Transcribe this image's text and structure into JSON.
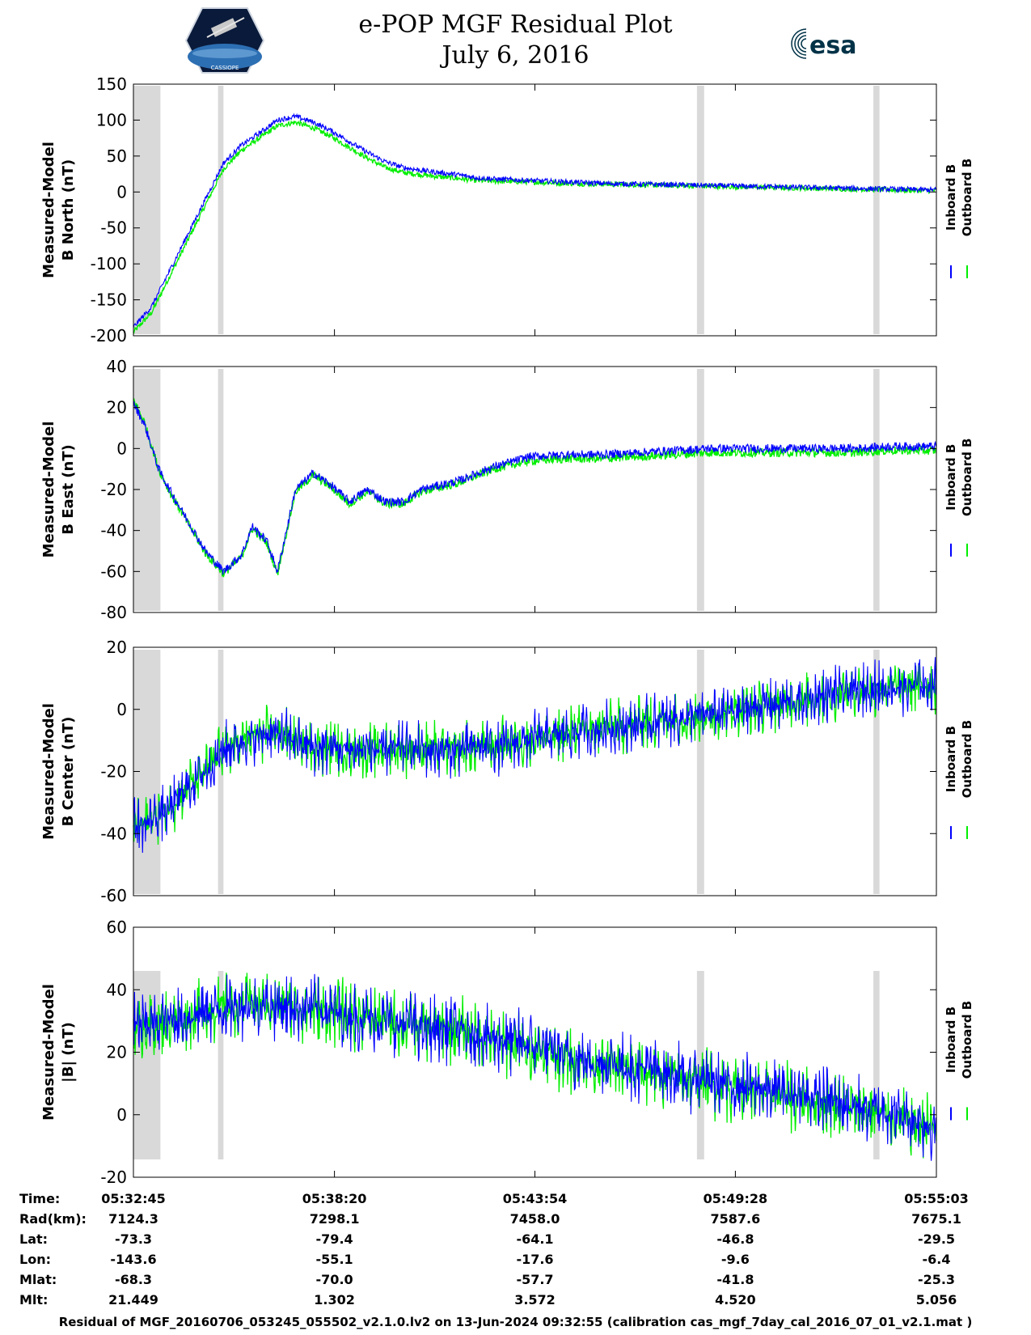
{
  "title": {
    "line1": "e-POP MGF Residual Plot",
    "line2": "July 6, 2016"
  },
  "logos": {
    "left": "cassiope-logo",
    "right": "esa-logo",
    "right_text": "esa",
    "left_text": "CASSIOPE"
  },
  "colors": {
    "inboard": "#0000ff",
    "outboard": "#00ee00",
    "gap": "#d9d9d9"
  },
  "chart_data": [
    {
      "type": "line",
      "ylabel_line1": "Measured-Model",
      "ylabel_line2": "B North (nT)",
      "ylim": [
        -200,
        150
      ],
      "yticks": [
        -200,
        -150,
        -100,
        -50,
        0,
        50,
        100,
        150
      ],
      "series": [
        {
          "name": "Inboard B",
          "x": [
            0,
            0.5,
            1,
            1.5,
            2,
            2.5,
            3,
            3.5,
            4,
            4.5,
            5,
            5.5,
            6,
            6.5,
            7,
            7.5,
            8,
            8.5,
            9,
            9.5,
            10,
            11,
            12,
            13,
            14,
            15,
            16,
            17,
            18,
            19,
            20,
            21,
            22
          ],
          "values": [
            -188,
            -160,
            -110,
            -60,
            -10,
            40,
            65,
            82,
            100,
            105,
            97,
            85,
            70,
            55,
            42,
            34,
            30,
            27,
            24,
            20,
            18,
            16,
            14,
            12,
            11,
            10,
            9,
            8,
            7,
            6,
            5,
            4,
            3
          ]
        },
        {
          "name": "Outboard B",
          "x": [
            0,
            0.5,
            1,
            1.5,
            2,
            2.5,
            3,
            3.5,
            4,
            4.5,
            5,
            5.5,
            6,
            6.5,
            7,
            7.5,
            8,
            8.5,
            9,
            9.5,
            10,
            11,
            12,
            13,
            14,
            15,
            16,
            17,
            18,
            19,
            20,
            21,
            22
          ],
          "values": [
            -195,
            -168,
            -118,
            -68,
            -18,
            32,
            58,
            75,
            92,
            97,
            89,
            77,
            62,
            47,
            34,
            27,
            24,
            21,
            19,
            16,
            15,
            14,
            12,
            11,
            10,
            9,
            8,
            7,
            6,
            5,
            4,
            3,
            2
          ]
        }
      ]
    },
    {
      "type": "line",
      "ylabel_line1": "Measured-Model",
      "ylabel_line2": "B East (nT)",
      "ylim": [
        -80,
        40
      ],
      "yticks": [
        -80,
        -60,
        -40,
        -20,
        0,
        20,
        40
      ],
      "series": [
        {
          "name": "Inboard B",
          "x": [
            0,
            0.3,
            0.7,
            1,
            1.5,
            2,
            2.5,
            3,
            3.3,
            3.7,
            4,
            4.5,
            5,
            5.5,
            6,
            6.5,
            7,
            7.5,
            8,
            9,
            10,
            11,
            12,
            13,
            14,
            15,
            16,
            17,
            18,
            19,
            20,
            21,
            22
          ],
          "values": [
            22,
            12,
            -10,
            -20,
            -35,
            -50,
            -60,
            -52,
            -38,
            -45,
            -60,
            -20,
            -12,
            -18,
            -26,
            -20,
            -26,
            -26,
            -20,
            -16,
            -9,
            -4,
            -3,
            -3,
            -2,
            -1,
            0,
            0,
            0,
            0,
            0,
            1,
            1
          ]
        },
        {
          "name": "Outboard B",
          "x": [
            0,
            0.3,
            0.7,
            1,
            1.5,
            2,
            2.5,
            3,
            3.3,
            3.7,
            4,
            4.5,
            5,
            5.5,
            6,
            6.5,
            7,
            7.5,
            8,
            9,
            10,
            11,
            12,
            13,
            14,
            15,
            16,
            17,
            18,
            19,
            20,
            21,
            22
          ],
          "values": [
            24,
            13,
            -10,
            -21,
            -36,
            -51,
            -61,
            -53,
            -39,
            -46,
            -61,
            -21,
            -13,
            -19,
            -27,
            -21,
            -27,
            -27,
            -21,
            -17,
            -10,
            -6,
            -5,
            -5,
            -4,
            -3,
            -2,
            -2,
            -2,
            -2,
            -2,
            -1,
            -1
          ]
        }
      ]
    },
    {
      "type": "line",
      "ylabel_line1": "Measured-Model",
      "ylabel_line2": "B Center (nT)",
      "ylim": [
        -60,
        20
      ],
      "yticks": [
        -60,
        -40,
        -20,
        0,
        20
      ],
      "series": [
        {
          "name": "Inboard B",
          "x": [
            0,
            0.5,
            1,
            1.5,
            2,
            2.5,
            3,
            3.5,
            4,
            5,
            6,
            7,
            8,
            9,
            10,
            11,
            12,
            13,
            14,
            15,
            16,
            17,
            18,
            19,
            20,
            21,
            22
          ],
          "values": [
            -38,
            -36,
            -32,
            -25,
            -20,
            -13,
            -10,
            -8,
            -8,
            -12,
            -13,
            -13,
            -13,
            -13,
            -12,
            -10,
            -8,
            -6,
            -5,
            -3,
            -2,
            0,
            2,
            4,
            6,
            7,
            8
          ]
        },
        {
          "name": "Outboard B",
          "x": [
            0,
            0.5,
            1,
            1.5,
            2,
            2.5,
            3,
            3.5,
            4,
            5,
            6,
            7,
            8,
            9,
            10,
            11,
            12,
            13,
            14,
            15,
            16,
            17,
            18,
            19,
            20,
            21,
            22
          ],
          "values": [
            -38,
            -36,
            -32,
            -25,
            -20,
            -13,
            -10,
            -8,
            -8,
            -12,
            -13,
            -13,
            -13,
            -13,
            -12,
            -10,
            -8,
            -6,
            -5,
            -3,
            -2,
            0,
            2,
            4,
            6,
            7,
            8
          ]
        }
      ]
    },
    {
      "type": "line",
      "ylabel_line1": "Measured-Model",
      "ylabel_line2": "|B| (nT)",
      "ylim": [
        -20,
        60
      ],
      "yticks": [
        -20,
        0,
        20,
        40,
        60
      ],
      "series": [
        {
          "name": "Inboard B",
          "x": [
            0,
            1,
            2,
            3,
            4,
            5,
            6,
            7,
            8,
            9,
            10,
            11,
            12,
            13,
            14,
            15,
            16,
            17,
            18,
            19,
            20,
            21,
            22
          ],
          "values": [
            28,
            30,
            33,
            35,
            35,
            34,
            32,
            30,
            28,
            27,
            25,
            22,
            19,
            17,
            15,
            13,
            11,
            9,
            7,
            5,
            3,
            1,
            -3
          ]
        },
        {
          "name": "Outboard B",
          "x": [
            0,
            1,
            2,
            3,
            4,
            5,
            6,
            7,
            8,
            9,
            10,
            11,
            12,
            13,
            14,
            15,
            16,
            17,
            18,
            19,
            20,
            21,
            22
          ],
          "values": [
            28,
            30,
            33,
            35,
            35,
            34,
            32,
            30,
            28,
            27,
            24,
            21,
            18,
            16,
            14,
            12,
            10,
            8,
            6,
            4,
            2,
            0,
            -4
          ]
        }
      ]
    }
  ],
  "x_axis": {
    "range_minutes": [
      0,
      22.3
    ],
    "tick_positions_minutes": [
      0,
      5.583,
      11.15,
      16.717,
      22.3
    ],
    "gaps_minutes": [
      [
        0,
        0.75
      ],
      [
        2.35,
        2.5
      ],
      [
        15.65,
        15.85
      ],
      [
        20.55,
        20.72
      ]
    ]
  },
  "ephemeris": {
    "labels": [
      "Time:",
      "Rad(km):",
      "Lat:",
      "Lon:",
      "Mlat:",
      "Mlt:"
    ],
    "columns": [
      [
        "05:32:45",
        "7124.3",
        "-73.3",
        "-143.6",
        "-68.3",
        "21.449"
      ],
      [
        "05:38:20",
        "7298.1",
        "-79.4",
        "-55.1",
        "-70.0",
        "1.302"
      ],
      [
        "05:43:54",
        "7458.0",
        "-64.1",
        "-17.6",
        "-57.7",
        "3.572"
      ],
      [
        "05:49:28",
        "7587.6",
        "-46.8",
        "-9.6",
        "-41.8",
        "4.520"
      ],
      [
        "05:55:03",
        "7675.1",
        "-29.5",
        "-6.4",
        "-25.3",
        "5.056"
      ]
    ]
  },
  "footer": "Residual of MGF_20160706_053245_055502_v2.1.0.lv2 on 13-Jun-2024 09:32:55 (calibration cas_mgf_7day_cal_2016_07_01_v2.1.mat )"
}
